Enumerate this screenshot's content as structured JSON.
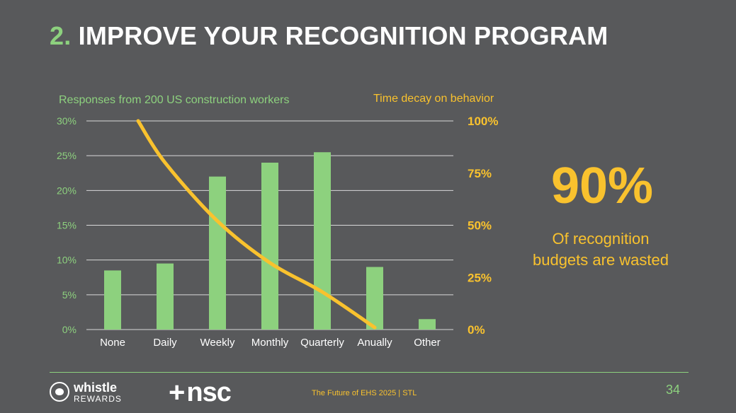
{
  "slide": {
    "title_number": "2.",
    "title_text": "IMPROVE YOUR RECOGNITION PROGRAM",
    "big_stat": "90%",
    "big_stat_caption_line1": "Of recognition",
    "big_stat_caption_line2": "budgets are wasted",
    "footer_text": "The Future of EHS 2025 | STL",
    "page_number": "34",
    "logos": {
      "whistle_line1": "whistle",
      "whistle_line2": "REWARDS",
      "nsc_plus": "+",
      "nsc_text": "nsc"
    }
  },
  "colors": {
    "background": "#58595b",
    "green": "#8dd17e",
    "yellow": "#f9c22e",
    "white": "#ffffff"
  },
  "chart_data": [
    {
      "type": "bar",
      "title": "Responses from 200 US construction workers",
      "categories": [
        "None",
        "Daily",
        "Weekly",
        "Monthly",
        "Quarterly",
        "Anually",
        "Other"
      ],
      "values": [
        8.5,
        9.5,
        22,
        24,
        25.5,
        9,
        1.5
      ],
      "ylim": [
        0,
        30
      ],
      "yticks": [
        "0%",
        "5%",
        "10%",
        "15%",
        "20%",
        "25%",
        "30%"
      ],
      "grid": true,
      "color": "#8dd17e"
    },
    {
      "type": "line",
      "title": "Time decay on behavior",
      "x": [
        "None",
        "Daily",
        "Weekly",
        "Monthly",
        "Quarterly",
        "Anually"
      ],
      "values": [
        100,
        80,
        52,
        32,
        18,
        1
      ],
      "ylim": [
        0,
        100
      ],
      "yticks": [
        "0%",
        "25%",
        "50%",
        "75%",
        "100%"
      ],
      "color": "#f9c22e"
    }
  ]
}
